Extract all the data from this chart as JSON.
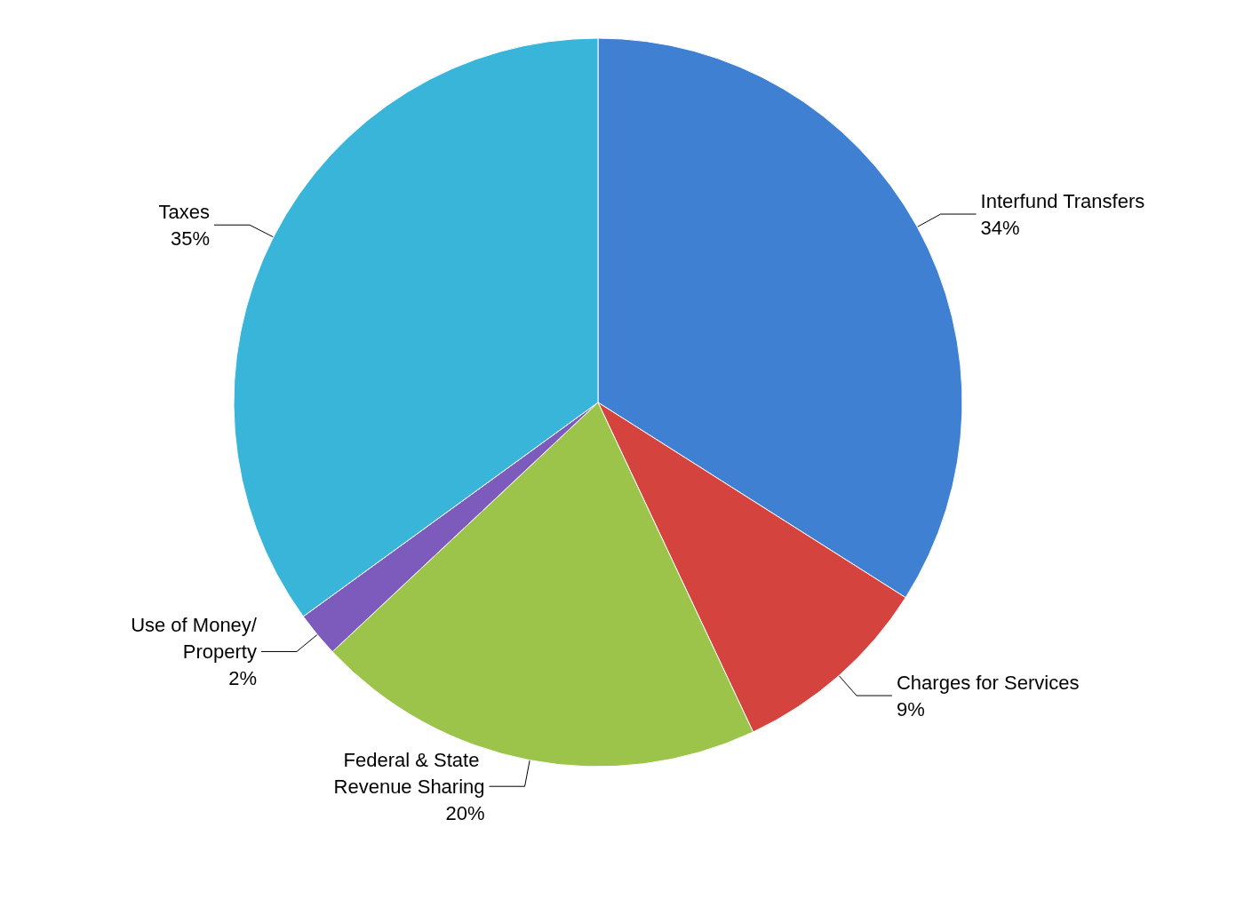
{
  "chart_data": {
    "type": "pie",
    "categories": [
      "Interfund Transfers",
      "Charges for Services",
      "Federal & State Revenue Sharing",
      "Use of Money/Property",
      "Taxes"
    ],
    "values": [
      34,
      9,
      20,
      2,
      35
    ],
    "colors": [
      "#3f80d2",
      "#d4433e",
      "#9cc44a",
      "#7c5bbd",
      "#39b5da"
    ],
    "value_labels": [
      "34%",
      "9%",
      "20%",
      "2%",
      "35%"
    ]
  }
}
